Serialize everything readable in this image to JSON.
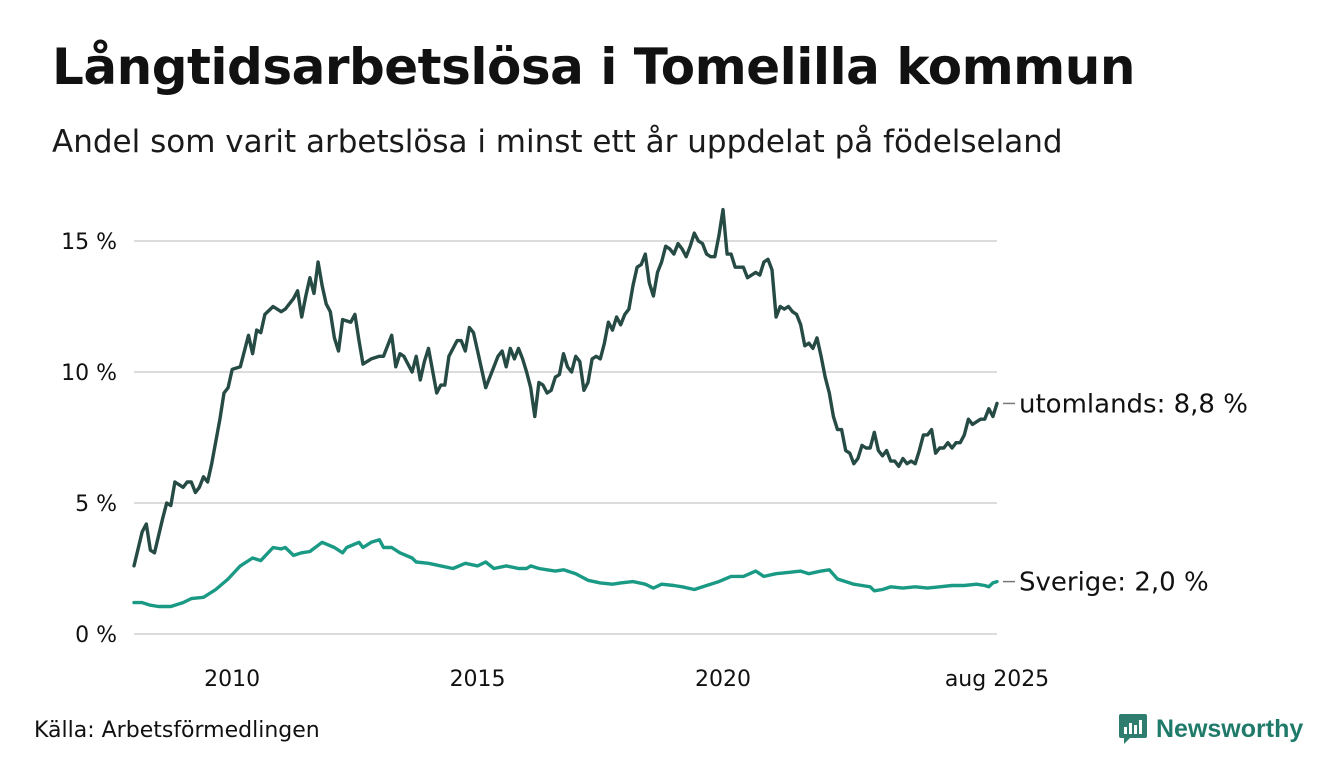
{
  "header": {
    "title": "Långtidsarbetslösa i Tomelilla kommun",
    "subtitle": "Andel som varit arbetslösa i minst ett år uppdelat på födelseland"
  },
  "footer": {
    "source": "Källa: Arbetsförmedlingen",
    "brand": "Newsworthy"
  },
  "colors": {
    "utomlands": "#264a44",
    "sverige": "#1a9a85",
    "grid": "#dcdcdc",
    "brand": "#1f7a6a"
  },
  "chart_data": {
    "type": "line",
    "title": "Långtidsarbetslösa i Tomelilla kommun",
    "subtitle": "Andel som varit arbetslösa i minst ett år uppdelat på födelseland",
    "x_start": "2008-01",
    "x_end": "2025-08",
    "x_step": "month",
    "x_ticks": [
      {
        "x": "2010-01",
        "label": "2010"
      },
      {
        "x": "2015-01",
        "label": "2015"
      },
      {
        "x": "2020-01",
        "label": "2020"
      },
      {
        "x": "2025-08",
        "label": "aug 2025"
      }
    ],
    "y_ticks": [
      {
        "value": 0,
        "label": "0 %"
      },
      {
        "value": 5,
        "label": "5 %"
      },
      {
        "value": 10,
        "label": "10 %"
      },
      {
        "value": 15,
        "label": "15 %"
      }
    ],
    "ylim": [
      0,
      16.5
    ],
    "grid": "horizontal",
    "series": [
      {
        "name": "utomlands",
        "end_label": "utomlands: 8,8 %",
        "keypoints": [
          [
            "2008-01",
            2.6
          ],
          [
            "2008-03",
            3.9
          ],
          [
            "2008-04",
            4.2
          ],
          [
            "2008-05",
            3.2
          ],
          [
            "2008-06",
            3.1
          ],
          [
            "2008-08",
            4.4
          ],
          [
            "2008-09",
            5.0
          ],
          [
            "2008-10",
            4.9
          ],
          [
            "2008-11",
            5.8
          ],
          [
            "2009-01",
            5.6
          ],
          [
            "2009-02",
            5.8
          ],
          [
            "2009-03",
            5.8
          ],
          [
            "2009-04",
            5.4
          ],
          [
            "2009-05",
            5.6
          ],
          [
            "2009-06",
            6.0
          ],
          [
            "2009-07",
            5.8
          ],
          [
            "2009-08",
            6.5
          ],
          [
            "2009-10",
            8.2
          ],
          [
            "2009-11",
            9.2
          ],
          [
            "2009-12",
            9.4
          ],
          [
            "2010-01",
            10.1
          ],
          [
            "2010-03",
            10.2
          ],
          [
            "2010-05",
            11.4
          ],
          [
            "2010-06",
            10.7
          ],
          [
            "2010-07",
            11.6
          ],
          [
            "2010-08",
            11.5
          ],
          [
            "2010-09",
            12.2
          ],
          [
            "2010-11",
            12.5
          ],
          [
            "2011-01",
            12.3
          ],
          [
            "2011-02",
            12.4
          ],
          [
            "2011-04",
            12.8
          ],
          [
            "2011-05",
            13.1
          ],
          [
            "2011-06",
            12.1
          ],
          [
            "2011-07",
            12.9
          ],
          [
            "2011-08",
            13.6
          ],
          [
            "2011-09",
            13.0
          ],
          [
            "2011-10",
            14.2
          ],
          [
            "2011-11",
            13.3
          ],
          [
            "2011-12",
            12.6
          ],
          [
            "2012-01",
            12.3
          ],
          [
            "2012-02",
            11.3
          ],
          [
            "2012-03",
            10.8
          ],
          [
            "2012-04",
            12.0
          ],
          [
            "2012-06",
            11.9
          ],
          [
            "2012-07",
            12.2
          ],
          [
            "2012-08",
            11.2
          ],
          [
            "2012-09",
            10.3
          ],
          [
            "2012-11",
            10.5
          ],
          [
            "2013-01",
            10.6
          ],
          [
            "2013-02",
            10.6
          ],
          [
            "2013-04",
            11.4
          ],
          [
            "2013-05",
            10.2
          ],
          [
            "2013-06",
            10.7
          ],
          [
            "2013-07",
            10.6
          ],
          [
            "2013-09",
            10.0
          ],
          [
            "2013-10",
            10.6
          ],
          [
            "2013-11",
            9.7
          ],
          [
            "2013-12",
            10.4
          ],
          [
            "2014-01",
            10.9
          ],
          [
            "2014-03",
            9.2
          ],
          [
            "2014-04",
            9.5
          ],
          [
            "2014-05",
            9.5
          ],
          [
            "2014-06",
            10.6
          ],
          [
            "2014-08",
            11.2
          ],
          [
            "2014-09",
            11.2
          ],
          [
            "2014-10",
            10.8
          ],
          [
            "2014-11",
            11.7
          ],
          [
            "2014-12",
            11.5
          ],
          [
            "2015-01",
            10.8
          ],
          [
            "2015-03",
            9.4
          ],
          [
            "2015-05",
            10.2
          ],
          [
            "2015-06",
            10.6
          ],
          [
            "2015-07",
            10.8
          ],
          [
            "2015-08",
            10.2
          ],
          [
            "2015-09",
            10.9
          ],
          [
            "2015-10",
            10.5
          ],
          [
            "2015-11",
            10.9
          ],
          [
            "2015-12",
            10.5
          ],
          [
            "2016-01",
            10.0
          ],
          [
            "2016-02",
            9.4
          ],
          [
            "2016-03",
            8.3
          ],
          [
            "2016-04",
            9.6
          ],
          [
            "2016-05",
            9.5
          ],
          [
            "2016-06",
            9.2
          ],
          [
            "2016-07",
            9.3
          ],
          [
            "2016-08",
            9.8
          ],
          [
            "2016-09",
            9.9
          ],
          [
            "2016-10",
            10.7
          ],
          [
            "2016-11",
            10.2
          ],
          [
            "2016-12",
            10.0
          ],
          [
            "2017-01",
            10.6
          ],
          [
            "2017-02",
            10.4
          ],
          [
            "2017-03",
            9.3
          ],
          [
            "2017-04",
            9.6
          ],
          [
            "2017-05",
            10.5
          ],
          [
            "2017-06",
            10.6
          ],
          [
            "2017-07",
            10.5
          ],
          [
            "2017-08",
            11.1
          ],
          [
            "2017-09",
            11.9
          ],
          [
            "2017-10",
            11.6
          ],
          [
            "2017-11",
            12.1
          ],
          [
            "2017-12",
            11.8
          ],
          [
            "2018-01",
            12.2
          ],
          [
            "2018-02",
            12.4
          ],
          [
            "2018-03",
            13.3
          ],
          [
            "2018-04",
            14.0
          ],
          [
            "2018-05",
            14.1
          ],
          [
            "2018-06",
            14.5
          ],
          [
            "2018-07",
            13.4
          ],
          [
            "2018-08",
            12.9
          ],
          [
            "2018-09",
            13.8
          ],
          [
            "2018-10",
            14.2
          ],
          [
            "2018-11",
            14.8
          ],
          [
            "2018-12",
            14.7
          ],
          [
            "2019-01",
            14.5
          ],
          [
            "2019-02",
            14.9
          ],
          [
            "2019-03",
            14.7
          ],
          [
            "2019-04",
            14.4
          ],
          [
            "2019-05",
            14.8
          ],
          [
            "2019-06",
            15.3
          ],
          [
            "2019-07",
            15.0
          ],
          [
            "2019-08",
            14.9
          ],
          [
            "2019-09",
            14.5
          ],
          [
            "2019-10",
            14.4
          ],
          [
            "2019-11",
            14.4
          ],
          [
            "2019-12",
            15.2
          ],
          [
            "2020-01",
            16.2
          ],
          [
            "2020-02",
            14.5
          ],
          [
            "2020-03",
            14.5
          ],
          [
            "2020-04",
            14.0
          ],
          [
            "2020-06",
            14.0
          ],
          [
            "2020-07",
            13.6
          ],
          [
            "2020-08",
            13.7
          ],
          [
            "2020-09",
            13.8
          ],
          [
            "2020-10",
            13.7
          ],
          [
            "2020-11",
            14.2
          ],
          [
            "2020-12",
            14.3
          ],
          [
            "2021-01",
            13.9
          ],
          [
            "2021-02",
            12.1
          ],
          [
            "2021-03",
            12.5
          ],
          [
            "2021-04",
            12.4
          ],
          [
            "2021-05",
            12.5
          ],
          [
            "2021-06",
            12.3
          ],
          [
            "2021-07",
            12.2
          ],
          [
            "2021-08",
            11.8
          ],
          [
            "2021-09",
            11.0
          ],
          [
            "2021-10",
            11.1
          ],
          [
            "2021-11",
            10.9
          ],
          [
            "2021-12",
            11.3
          ],
          [
            "2022-01",
            10.6
          ],
          [
            "2022-02",
            9.8
          ],
          [
            "2022-03",
            9.2
          ],
          [
            "2022-04",
            8.3
          ],
          [
            "2022-05",
            7.8
          ],
          [
            "2022-06",
            7.8
          ],
          [
            "2022-07",
            7.0
          ],
          [
            "2022-08",
            6.9
          ],
          [
            "2022-09",
            6.5
          ],
          [
            "2022-10",
            6.7
          ],
          [
            "2022-11",
            7.2
          ],
          [
            "2022-12",
            7.1
          ],
          [
            "2023-01",
            7.1
          ],
          [
            "2023-02",
            7.7
          ],
          [
            "2023-03",
            7.0
          ],
          [
            "2023-04",
            6.8
          ],
          [
            "2023-05",
            7.0
          ],
          [
            "2023-06",
            6.6
          ],
          [
            "2023-07",
            6.6
          ],
          [
            "2023-08",
            6.4
          ],
          [
            "2023-09",
            6.7
          ],
          [
            "2023-10",
            6.5
          ],
          [
            "2023-11",
            6.6
          ],
          [
            "2023-12",
            6.5
          ],
          [
            "2024-01",
            7.0
          ],
          [
            "2024-02",
            7.6
          ],
          [
            "2024-03",
            7.6
          ],
          [
            "2024-04",
            7.8
          ],
          [
            "2024-05",
            6.9
          ],
          [
            "2024-06",
            7.1
          ],
          [
            "2024-07",
            7.1
          ],
          [
            "2024-08",
            7.3
          ],
          [
            "2024-09",
            7.1
          ],
          [
            "2024-10",
            7.3
          ],
          [
            "2024-11",
            7.3
          ],
          [
            "2024-12",
            7.6
          ],
          [
            "2025-01",
            8.2
          ],
          [
            "2025-02",
            8.0
          ],
          [
            "2025-03",
            8.1
          ],
          [
            "2025-04",
            8.2
          ],
          [
            "2025-05",
            8.2
          ],
          [
            "2025-06",
            8.6
          ],
          [
            "2025-07",
            8.3
          ],
          [
            "2025-08",
            8.8
          ]
        ]
      },
      {
        "name": "Sverige",
        "end_label": "Sverige: 2,0 %",
        "keypoints": [
          [
            "2008-01",
            1.2
          ],
          [
            "2008-03",
            1.2
          ],
          [
            "2008-05",
            1.1
          ],
          [
            "2008-07",
            1.05
          ],
          [
            "2008-10",
            1.05
          ],
          [
            "2009-01",
            1.2
          ],
          [
            "2009-03",
            1.35
          ],
          [
            "2009-06",
            1.4
          ],
          [
            "2009-09",
            1.7
          ],
          [
            "2009-12",
            2.1
          ],
          [
            "2010-03",
            2.6
          ],
          [
            "2010-06",
            2.9
          ],
          [
            "2010-08",
            2.8
          ],
          [
            "2010-11",
            3.3
          ],
          [
            "2011-01",
            3.25
          ],
          [
            "2011-02",
            3.3
          ],
          [
            "2011-04",
            3.0
          ],
          [
            "2011-06",
            3.1
          ],
          [
            "2011-08",
            3.15
          ],
          [
            "2011-11",
            3.5
          ],
          [
            "2012-02",
            3.3
          ],
          [
            "2012-04",
            3.1
          ],
          [
            "2012-05",
            3.3
          ],
          [
            "2012-08",
            3.5
          ],
          [
            "2012-09",
            3.3
          ],
          [
            "2012-11",
            3.5
          ],
          [
            "2013-01",
            3.6
          ],
          [
            "2013-02",
            3.3
          ],
          [
            "2013-04",
            3.3
          ],
          [
            "2013-06",
            3.1
          ],
          [
            "2013-09",
            2.9
          ],
          [
            "2013-10",
            2.75
          ],
          [
            "2014-01",
            2.7
          ],
          [
            "2014-04",
            2.6
          ],
          [
            "2014-07",
            2.5
          ],
          [
            "2014-10",
            2.7
          ],
          [
            "2015-01",
            2.6
          ],
          [
            "2015-03",
            2.75
          ],
          [
            "2015-05",
            2.5
          ],
          [
            "2015-08",
            2.6
          ],
          [
            "2015-11",
            2.5
          ],
          [
            "2016-01",
            2.5
          ],
          [
            "2016-02",
            2.6
          ],
          [
            "2016-04",
            2.5
          ],
          [
            "2016-06",
            2.45
          ],
          [
            "2016-08",
            2.4
          ],
          [
            "2016-10",
            2.45
          ],
          [
            "2017-01",
            2.3
          ],
          [
            "2017-04",
            2.05
          ],
          [
            "2017-07",
            1.95
          ],
          [
            "2017-10",
            1.9
          ],
          [
            "2017-12",
            1.95
          ],
          [
            "2018-03",
            2.0
          ],
          [
            "2018-06",
            1.9
          ],
          [
            "2018-08",
            1.75
          ],
          [
            "2018-10",
            1.9
          ],
          [
            "2019-01",
            1.85
          ],
          [
            "2019-03",
            1.8
          ],
          [
            "2019-06",
            1.7
          ],
          [
            "2019-09",
            1.85
          ],
          [
            "2019-12",
            2.0
          ],
          [
            "2020-03",
            2.2
          ],
          [
            "2020-06",
            2.2
          ],
          [
            "2020-09",
            2.4
          ],
          [
            "2020-11",
            2.2
          ],
          [
            "2021-02",
            2.3
          ],
          [
            "2021-05",
            2.35
          ],
          [
            "2021-08",
            2.4
          ],
          [
            "2021-10",
            2.3
          ],
          [
            "2022-01",
            2.4
          ],
          [
            "2022-03",
            2.45
          ],
          [
            "2022-05",
            2.1
          ],
          [
            "2022-07",
            2.0
          ],
          [
            "2022-09",
            1.9
          ],
          [
            "2022-11",
            1.85
          ],
          [
            "2023-01",
            1.8
          ],
          [
            "2023-02",
            1.65
          ],
          [
            "2023-04",
            1.7
          ],
          [
            "2023-06",
            1.8
          ],
          [
            "2023-09",
            1.75
          ],
          [
            "2023-12",
            1.8
          ],
          [
            "2024-03",
            1.75
          ],
          [
            "2024-06",
            1.8
          ],
          [
            "2024-09",
            1.85
          ],
          [
            "2024-12",
            1.85
          ],
          [
            "2025-03",
            1.9
          ],
          [
            "2025-05",
            1.85
          ],
          [
            "2025-06",
            1.8
          ],
          [
            "2025-07",
            1.95
          ],
          [
            "2025-08",
            2.0
          ]
        ]
      }
    ]
  }
}
